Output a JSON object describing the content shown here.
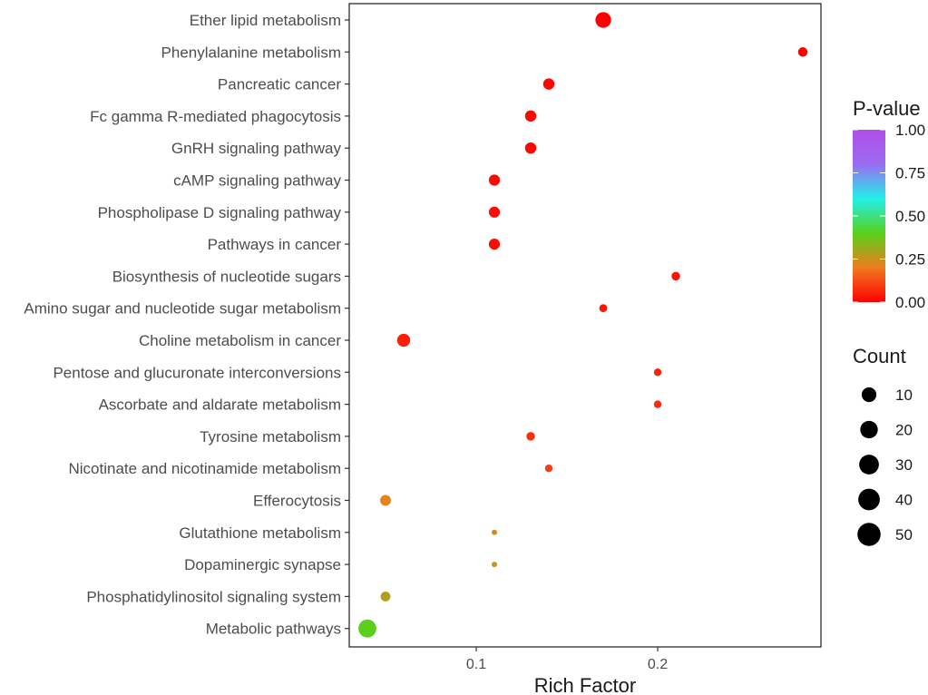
{
  "chart_data": {
    "type": "scatter",
    "title": "",
    "xlabel": "Rich Factor",
    "ylabel": "",
    "xlim": [
      0.03,
      0.29
    ],
    "x_ticks": [
      {
        "value": 0.1,
        "label": "0.1"
      },
      {
        "value": 0.2,
        "label": "0.2"
      }
    ],
    "grid": false,
    "legend_position": "right",
    "color_legend": {
      "title": "P-value",
      "range": [
        0,
        1
      ],
      "ticks": [
        {
          "value": 1.0,
          "label": "1.00"
        },
        {
          "value": 0.75,
          "label": "0.75"
        },
        {
          "value": 0.5,
          "label": "0.50"
        },
        {
          "value": 0.25,
          "label": "0.25"
        },
        {
          "value": 0.0,
          "label": "0.00"
        }
      ],
      "colors": [
        "#ff0000",
        "#ee7b1f",
        "#59d11a",
        "#22f0ea",
        "#9a6cf0",
        "#b04fe8"
      ]
    },
    "size_legend": {
      "title": "Count",
      "entries": [
        {
          "value": 10,
          "label": "10"
        },
        {
          "value": 20,
          "label": "20"
        },
        {
          "value": 30,
          "label": "30"
        },
        {
          "value": 40,
          "label": "40"
        },
        {
          "value": 50,
          "label": "50"
        }
      ]
    },
    "points": [
      {
        "pathway": "Ether lipid metabolism",
        "rich_factor": 0.17,
        "count": 45,
        "pvalue": 0.0
      },
      {
        "pathway": "Phenylalanine metabolism",
        "rich_factor": 0.28,
        "count": 15,
        "pvalue": 0.005
      },
      {
        "pathway": "Pancreatic cancer",
        "rich_factor": 0.14,
        "count": 22,
        "pvalue": 0.01
      },
      {
        "pathway": "Fc gamma R-mediated phagocytosis",
        "rich_factor": 0.13,
        "count": 22,
        "pvalue": 0.01
      },
      {
        "pathway": "GnRH signaling pathway",
        "rich_factor": 0.13,
        "count": 22,
        "pvalue": 0.012
      },
      {
        "pathway": "cAMP signaling pathway",
        "rich_factor": 0.11,
        "count": 21,
        "pvalue": 0.015
      },
      {
        "pathway": "Phospholipase D signaling pathway",
        "rich_factor": 0.11,
        "count": 21,
        "pvalue": 0.016
      },
      {
        "pathway": "Pathways in cancer",
        "rich_factor": 0.11,
        "count": 21,
        "pvalue": 0.02
      },
      {
        "pathway": "Biosynthesis of nucleotide sugars",
        "rich_factor": 0.21,
        "count": 12,
        "pvalue": 0.03
      },
      {
        "pathway": "Amino sugar and nucleotide sugar metabolism",
        "rich_factor": 0.17,
        "count": 10,
        "pvalue": 0.035
      },
      {
        "pathway": "Choline metabolism in cancer",
        "rich_factor": 0.06,
        "count": 30,
        "pvalue": 0.05
      },
      {
        "pathway": "Pentose and glucuronate interconversions",
        "rich_factor": 0.2,
        "count": 9,
        "pvalue": 0.06
      },
      {
        "pathway": "Ascorbate and aldarate metabolism",
        "rich_factor": 0.2,
        "count": 9,
        "pvalue": 0.07
      },
      {
        "pathway": "Tyrosine metabolism",
        "rich_factor": 0.13,
        "count": 12,
        "pvalue": 0.08
      },
      {
        "pathway": "Nicotinate and nicotinamide metabolism",
        "rich_factor": 0.14,
        "count": 9,
        "pvalue": 0.1
      },
      {
        "pathway": "Efferocytosis",
        "rich_factor": 0.05,
        "count": 20,
        "pvalue": 0.22
      },
      {
        "pathway": "Glutathione metabolism",
        "rich_factor": 0.11,
        "count": 4,
        "pvalue": 0.25
      },
      {
        "pathway": "Dopaminergic synapse",
        "rich_factor": 0.11,
        "count": 4,
        "pvalue": 0.26
      },
      {
        "pathway": "Phosphatidylinositol signaling system",
        "rich_factor": 0.05,
        "count": 16,
        "pvalue": 0.28
      },
      {
        "pathway": "Metabolic pathways",
        "rich_factor": 0.04,
        "count": 60,
        "pvalue": 0.4
      }
    ]
  }
}
